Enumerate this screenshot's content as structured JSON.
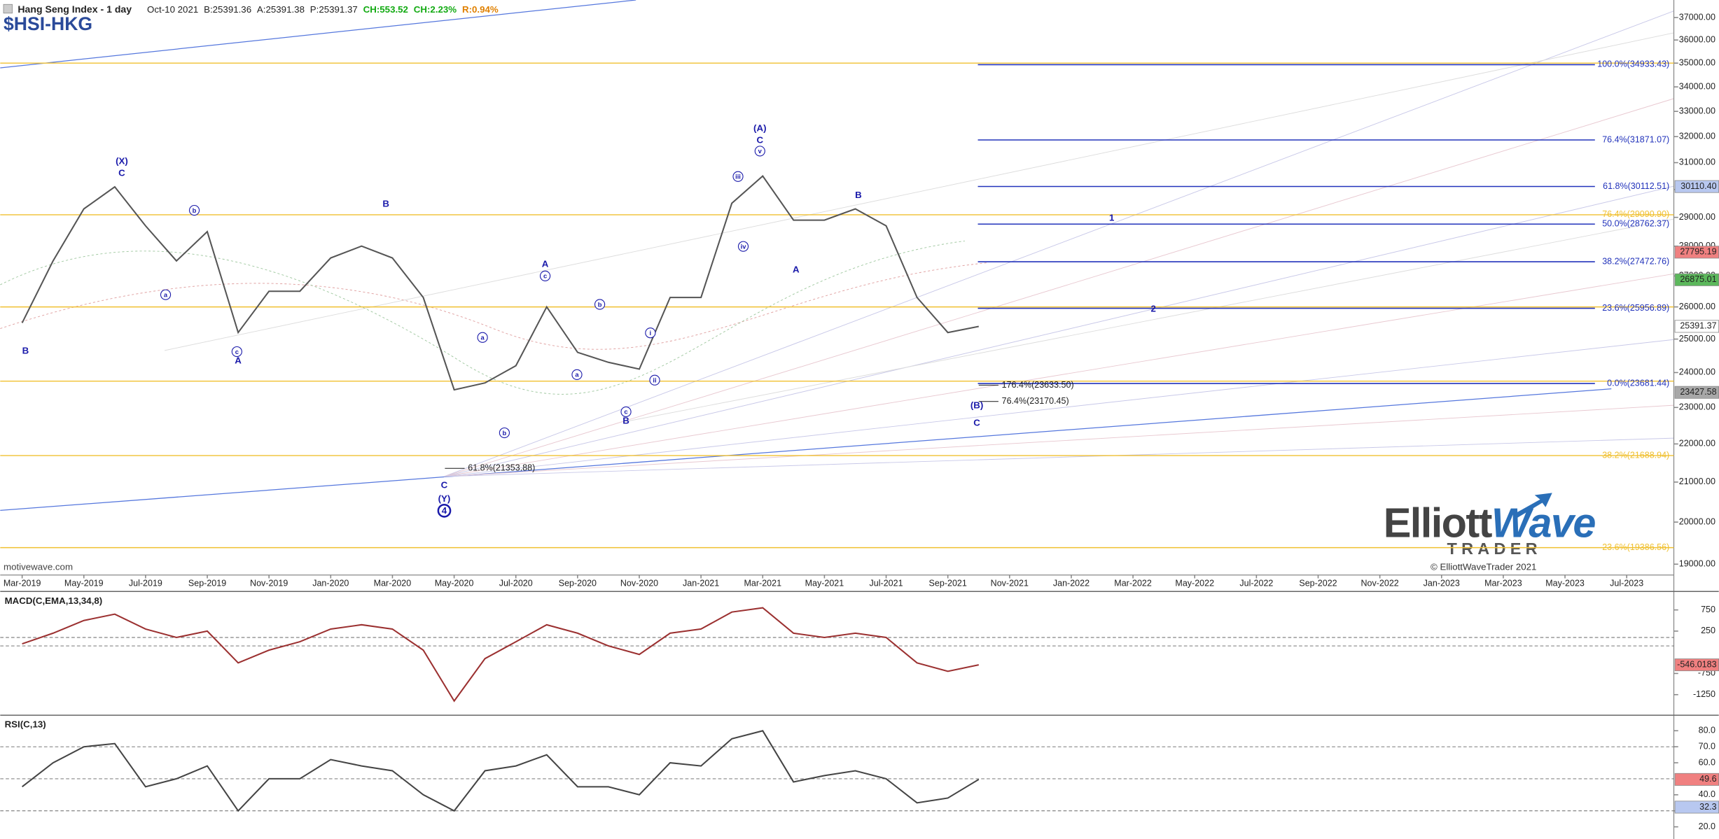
{
  "header": {
    "title": "Hang Seng Index - 1 day",
    "date": "Oct-10 2021",
    "bid": "B:25391.36",
    "ask": "A:25391.38",
    "price": "P:25391.37",
    "change": "CH:553.52",
    "change_pct": "CH:2.23%",
    "range": "R:0.94%",
    "symbol": "$HSI-HKG"
  },
  "footer": {
    "source": "motivewave.com",
    "copyright": "© ElliottWaveTrader 2021",
    "logo_1": "Elliott",
    "logo_2": "Wave",
    "logo_3": "TRADER"
  },
  "chart_data": [
    {
      "type": "line",
      "log": true,
      "color": "#555555",
      "categories": [
        "Mar-2019",
        null,
        "May-2019",
        null,
        "Jul-2019",
        null,
        "Sep-2019",
        null,
        "Nov-2019",
        null,
        "Jan-2020",
        null,
        "Mar-2020",
        null,
        "May-2020",
        null,
        "Jul-2020",
        null,
        "Sep-2020",
        null,
        "Nov-2020",
        null,
        "Jan-2021",
        null,
        "Mar-2021",
        null,
        "May-2021",
        null,
        "Jul-2021",
        null,
        "Sep-2021",
        null,
        "Nov-2021",
        null,
        "Jan-2022",
        null,
        "Mar-2022",
        null,
        "May-2022",
        null,
        "Jul-2022",
        null,
        "Sep-2022",
        null,
        "Nov-2022",
        null,
        "Jan-2023",
        null,
        "Mar-2023",
        null,
        "May-2023",
        null,
        "Jul-2023"
      ],
      "values": [
        25500,
        27500,
        29300,
        30100,
        28700,
        27500,
        28500,
        25200,
        26500,
        26500,
        27600,
        28000,
        27600,
        26300,
        23500,
        23700,
        24200,
        26000,
        24600,
        24300,
        24100,
        26300,
        26300,
        29500,
        30500,
        28900,
        28900,
        29300,
        28700,
        26300,
        25200,
        25391.37,
        null,
        null,
        null,
        null,
        null,
        null,
        null,
        null,
        null,
        null,
        null,
        null,
        null,
        null,
        null,
        null,
        null,
        null,
        null,
        null,
        null
      ],
      "ylim": [
        18750,
        37800
      ],
      "yticks": [
        {
          "value": 37000,
          "label": "37000.00"
        },
        {
          "value": 36000,
          "label": "36000.00"
        },
        {
          "value": 35000,
          "label": "35000.00"
        },
        {
          "value": 34000,
          "label": "34000.00"
        },
        {
          "value": 33000,
          "label": "33000.00"
        },
        {
          "value": 32000,
          "label": "32000.00"
        },
        {
          "value": 31000,
          "label": "31000.00"
        },
        {
          "value": 30000,
          "label": "30000.00"
        },
        {
          "value": 29000,
          "label": "29000.00"
        },
        {
          "value": 28000,
          "label": "28000.00"
        },
        {
          "value": 27000,
          "label": "27000.00"
        },
        {
          "value": 26000,
          "label": "26000.00"
        },
        {
          "value": 25000,
          "label": "25000.00"
        },
        {
          "value": 24000,
          "label": "24000.00"
        },
        {
          "value": 23000,
          "label": "23000.00"
        },
        {
          "value": 22000,
          "label": "22000.00"
        },
        {
          "value": 21000,
          "label": "21000.00"
        },
        {
          "value": 20000,
          "label": "20000.00"
        },
        {
          "value": 19000,
          "label": "19000.00"
        }
      ],
      "grid": false,
      "fib_color": "#2233bb",
      "fib_levels": [
        {
          "value": 34933.43,
          "label": "100.0%(34933.43)"
        },
        {
          "value": 31871.07,
          "label": "76.4%(31871.07)"
        },
        {
          "value": 30112.51,
          "label": "61.8%(30112.51)"
        },
        {
          "value": 28762.37,
          "label": "50.0%(28762.37)"
        },
        {
          "value": 27472.76,
          "label": "38.2%(27472.76)"
        },
        {
          "value": 25956.89,
          "label": "23.6%(25956.89)"
        },
        {
          "value": 23681.44,
          "label": "0.0%(23681.44)"
        }
      ],
      "level_color": "#f0c030",
      "levels": [
        {
          "value": 35000
        },
        {
          "value": 29090.9,
          "label": "76.4%(29090.90)"
        },
        {
          "value": 26000
        },
        {
          "value": 23750
        },
        {
          "value": 21688.94,
          "label": "38.2%(21688.94)"
        },
        {
          "value": 19386.56,
          "label": "23.6%(19386.56)"
        }
      ],
      "annotations": [
        {
          "text": "176.4%(23633.50)",
          "value": 23633.5,
          "x": 31
        },
        {
          "text": "76.4%(23170.45)",
          "value": 23170.45,
          "x": 31
        },
        {
          "text": "61.8%(21353.88)",
          "value": 21353.88,
          "x": 13.7
        }
      ],
      "wave_color": "#1a1aaa",
      "wave_labels": [
        {
          "text": "(X)",
          "x": 3.23,
          "y": 31060
        },
        {
          "text": "C",
          "x": 3.23,
          "y": 30610
        },
        {
          "text": "B",
          "x": 0.11,
          "y": 24650
        },
        {
          "text": "A",
          "x": 7.0,
          "y": 24360
        },
        {
          "text": "B",
          "x": 11.79,
          "y": 29490
        },
        {
          "text": "C",
          "x": 13.68,
          "y": 20920
        },
        {
          "text": "(Y)",
          "x": 13.68,
          "y": 20580
        },
        {
          "text": "4",
          "x": 13.68,
          "y": 20280,
          "circled": true,
          "big": true
        },
        {
          "text": "A",
          "x": 16.95,
          "y": 27400
        },
        {
          "text": "B",
          "x": 19.57,
          "y": 22630
        },
        {
          "text": "(A)",
          "x": 23.91,
          "y": 32330
        },
        {
          "text": "C",
          "x": 23.91,
          "y": 31860
        },
        {
          "text": "A",
          "x": 25.08,
          "y": 27210
        },
        {
          "text": "B",
          "x": 27.1,
          "y": 29800
        },
        {
          "text": "C",
          "x": 30.94,
          "y": 22570
        },
        {
          "text": "(B)",
          "x": 30.94,
          "y": 23060
        },
        {
          "text": "1",
          "x": 35.31,
          "y": 28980
        },
        {
          "text": "2",
          "x": 36.66,
          "y": 25940
        },
        {
          "text": "b",
          "x": 5.58,
          "y": 29250,
          "circled": true
        },
        {
          "text": "a",
          "x": 4.65,
          "y": 26390,
          "circled": true
        },
        {
          "text": "c",
          "x": 6.96,
          "y": 24620,
          "circled": true
        },
        {
          "text": "a",
          "x": 14.92,
          "y": 25050,
          "circled": true
        },
        {
          "text": "b",
          "x": 15.63,
          "y": 22300,
          "circled": true
        },
        {
          "text": "c",
          "x": 16.95,
          "y": 27000,
          "circled": true
        },
        {
          "text": "b",
          "x": 18.72,
          "y": 26080,
          "circled": true
        },
        {
          "text": "a",
          "x": 17.98,
          "y": 23940,
          "circled": true
        },
        {
          "text": "c",
          "x": 19.57,
          "y": 22880,
          "circled": true
        },
        {
          "text": "i",
          "x": 20.36,
          "y": 25190,
          "circled": true
        },
        {
          "text": "ii",
          "x": 20.5,
          "y": 23780,
          "circled": true
        },
        {
          "text": "iii",
          "x": 23.2,
          "y": 30480,
          "circled": true
        },
        {
          "text": "iv",
          "x": 23.37,
          "y": 27990,
          "circled": true
        },
        {
          "text": "v",
          "x": 23.91,
          "y": 31440,
          "circled": true
        }
      ],
      "price_markers": [
        {
          "value": 30110.4,
          "label": "30110.40",
          "color": "#b8c8f0"
        },
        {
          "value": 27795.19,
          "label": "27795.19",
          "color": "#f08080"
        },
        {
          "value": 26875.01,
          "label": "26875.01",
          "color": "#5cb85c"
        },
        {
          "value": 25391.37,
          "label": "25391.37",
          "color": "#ffffff"
        },
        {
          "value": 23427.58,
          "label": "23427.58",
          "color": "#a8a8a8"
        }
      ]
    },
    {
      "type": "line",
      "title": "MACD(C,EMA,13,34,8)",
      "color": "#9b3030",
      "values": [
        -50,
        200,
        500,
        650,
        300,
        100,
        250,
        -500,
        -200,
        0,
        300,
        400,
        300,
        -200,
        -1400,
        -400,
        0,
        400,
        200,
        -100,
        -300,
        200,
        300,
        700,
        800,
        200,
        100,
        200,
        100,
        -500,
        -700,
        -546.0183,
        null,
        null,
        null,
        null,
        null,
        null,
        null,
        null,
        null,
        null,
        null,
        null,
        null,
        null,
        null,
        null,
        null,
        null,
        null,
        null,
        null
      ],
      "ylim": [
        -1710,
        1160
      ],
      "yticks": [
        750,
        250,
        -750,
        -1250
      ],
      "reference_lines": [
        100,
        -100
      ],
      "price_markers": [
        {
          "value": -546.0183,
          "label": "-546.0183",
          "color": "#f08080"
        }
      ]
    },
    {
      "type": "line",
      "title": "RSI(C,13)",
      "color": "#444444",
      "values": [
        45,
        60,
        70,
        72,
        45,
        50,
        58,
        30,
        50,
        50,
        62,
        58,
        55,
        40,
        30,
        55,
        58,
        65,
        45,
        45,
        40,
        60,
        58,
        75,
        80,
        48,
        52,
        55,
        50,
        35,
        38,
        49.6,
        null,
        null,
        null,
        null,
        null,
        null,
        null,
        null,
        null,
        null,
        null,
        null,
        null,
        null,
        null,
        null,
        null,
        null,
        null,
        null,
        null
      ],
      "ylim": [
        12.4,
        89
      ],
      "yticks": [
        {
          "value": 80,
          "label": "80.0"
        },
        {
          "value": 70,
          "label": "70.0"
        },
        {
          "value": 60,
          "label": "60.0"
        },
        {
          "value": 40,
          "label": "40.0"
        },
        {
          "value": 30,
          "label": "30.0"
        },
        {
          "value": 20,
          "label": "20.0"
        }
      ],
      "reference_lines": [
        70,
        50,
        30
      ],
      "price_markers": [
        {
          "value": 49.6,
          "label": "49.6",
          "color": "#f08080"
        },
        {
          "value": 32.3,
          "label": "32.3",
          "color": "#b8c8f0"
        }
      ]
    }
  ]
}
